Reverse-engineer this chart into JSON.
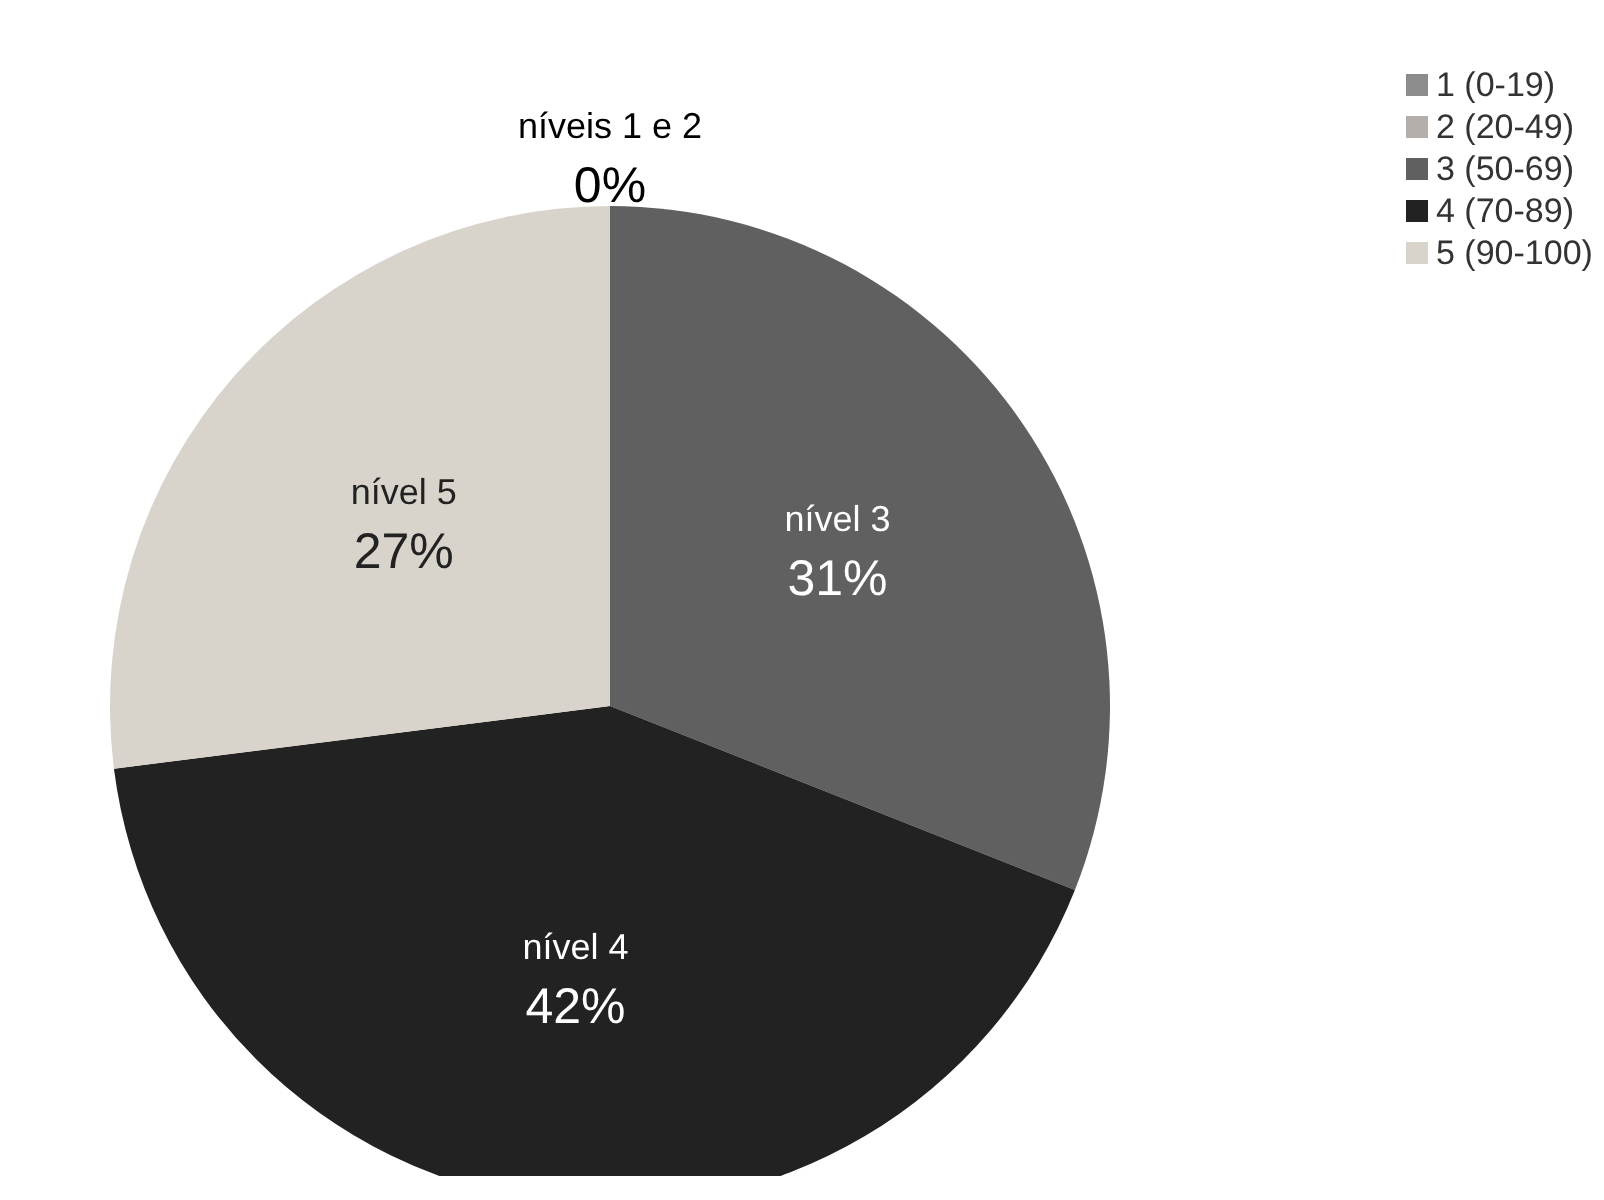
{
  "chart_data": {
    "type": "pie",
    "categories": [
      "1 (0-19)",
      "2 (20-49)",
      "3 (50-69)",
      "4 (70-89)",
      "5 (90-100)"
    ],
    "values": [
      0,
      0,
      31,
      42,
      27
    ],
    "colors": [
      "#8c8c8c",
      "#b3aea9",
      "#606060",
      "#222222",
      "#d9d4cb"
    ],
    "value_labels": [
      "níveis 1 e 2\n0%",
      null,
      "nível 3\n31%",
      "nível 4\n42%",
      "nível 5\n27%"
    ],
    "legend": "top right"
  }
}
